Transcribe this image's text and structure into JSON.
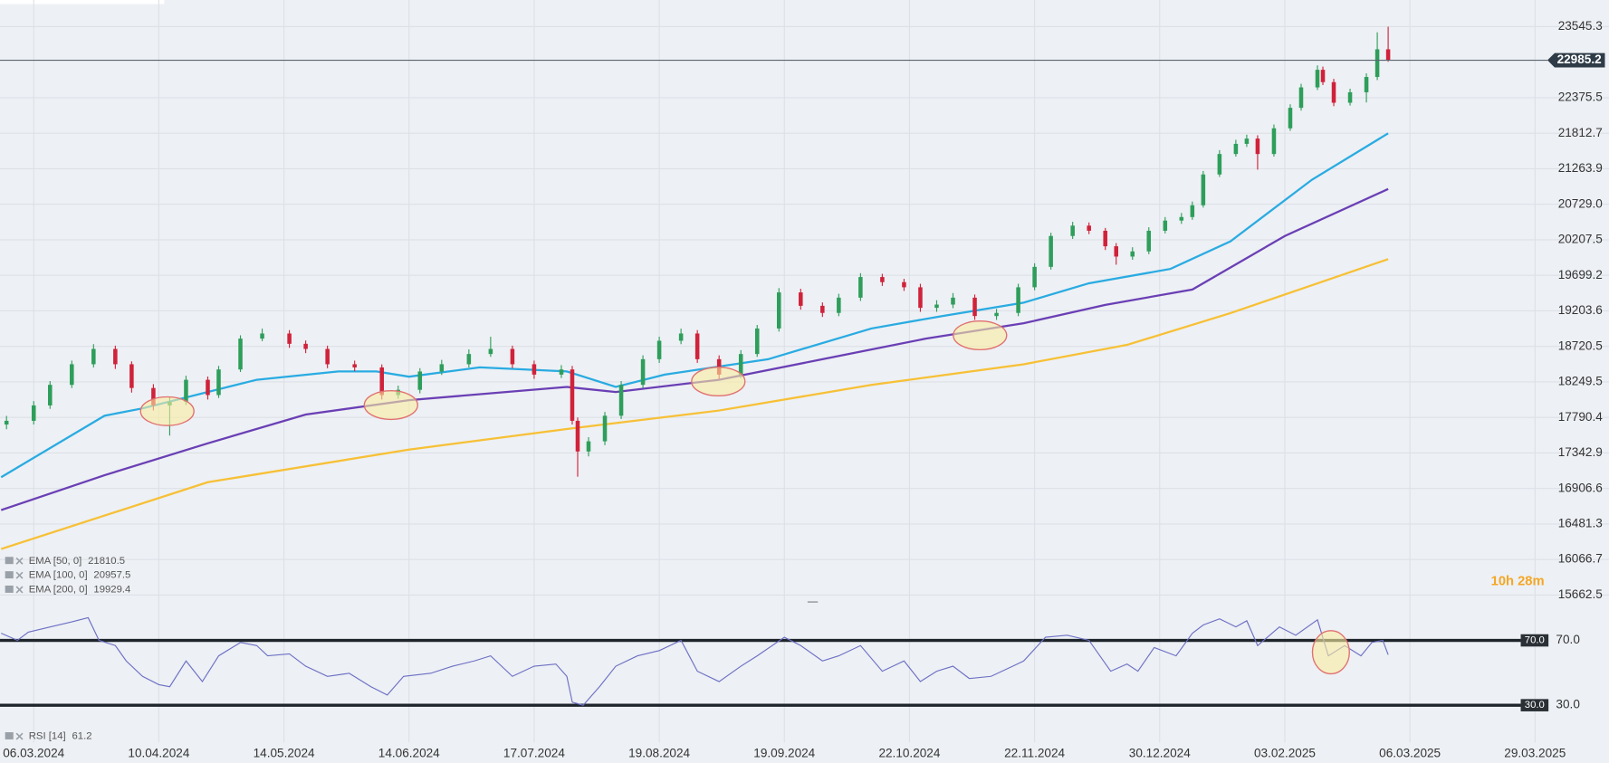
{
  "chart_data": [
    {
      "type": "candlestick",
      "x": [
        -5,
        0,
        3,
        7,
        11,
        15,
        18,
        22,
        25,
        28,
        32,
        34,
        38,
        42,
        47,
        50,
        54,
        59,
        64,
        67,
        71,
        75,
        80,
        84,
        88,
        92,
        97,
        99,
        100,
        102,
        105,
        108,
        112,
        115,
        119,
        122,
        126,
        130,
        133,
        137,
        141,
        145,
        148,
        152,
        156,
        160,
        163,
        166,
        169,
        173,
        177,
        181,
        184,
        187,
        191,
        194,
        197,
        199,
        202,
        205,
        208,
        211,
        213,
        215,
        218,
        221,
        223,
        225,
        228,
        231,
        233,
        236,
        237,
        239,
        242,
        245,
        247,
        249
      ],
      "open": [
        17700,
        17747,
        17944,
        18211,
        18482,
        18686,
        18482,
        18170,
        17944,
        17990,
        18277,
        18078,
        18413,
        18825,
        18894,
        18755,
        18686,
        18482,
        18440,
        18078,
        18146,
        18386,
        18482,
        18618,
        18686,
        18482,
        18345,
        18413,
        17747,
        17361,
        17488,
        17812,
        18211,
        18549,
        18796,
        18894,
        18549,
        18345,
        18618,
        18962,
        19459,
        19273,
        19175,
        19386,
        19675,
        19603,
        19531,
        19245,
        19290,
        19386,
        19132,
        19175,
        19531,
        19819,
        20263,
        20414,
        20339,
        20114,
        19966,
        20040,
        20339,
        20488,
        20540,
        20714,
        21177,
        21490,
        21647,
        21729,
        21490,
        21890,
        22214,
        22542,
        22828,
        22627,
        22295,
        22463,
        22711,
        23166
      ],
      "high": [
        17810,
        18000,
        18260,
        18530,
        18750,
        18730,
        18520,
        18220,
        18050,
        18330,
        18320,
        18460,
        18870,
        18960,
        18940,
        18800,
        18730,
        18530,
        18480,
        18200,
        18430,
        18540,
        18680,
        18850,
        18730,
        18530,
        18470,
        18460,
        17790,
        17540,
        17860,
        18260,
        18600,
        18850,
        18960,
        18940,
        18600,
        18670,
        19010,
        19520,
        19510,
        19320,
        19440,
        19730,
        19720,
        19650,
        19580,
        19350,
        19450,
        19430,
        19230,
        19580,
        19870,
        20310,
        20470,
        20460,
        20380,
        20160,
        20100,
        20390,
        20540,
        20600,
        20770,
        21230,
        21550,
        21710,
        21790,
        21780,
        21950,
        22270,
        22600,
        22900,
        22880,
        22680,
        22520,
        22770,
        23450,
        23545
      ],
      "low": [
        17640,
        17700,
        17900,
        18170,
        18440,
        18420,
        18110,
        17880,
        17560,
        17950,
        18020,
        18040,
        18380,
        18790,
        18700,
        18630,
        18430,
        18390,
        18020,
        18030,
        18100,
        18340,
        18440,
        18580,
        18430,
        18290,
        18300,
        17700,
        17050,
        17300,
        17440,
        17770,
        18170,
        18500,
        18750,
        18500,
        18290,
        18300,
        18580,
        18920,
        19220,
        19120,
        19130,
        19340,
        19550,
        19480,
        19190,
        19190,
        19240,
        19080,
        19080,
        19130,
        19490,
        19780,
        20220,
        20290,
        20060,
        19850,
        19920,
        20000,
        20300,
        20440,
        20500,
        20680,
        21140,
        21450,
        21600,
        21250,
        21450,
        21850,
        22170,
        22500,
        22580,
        22240,
        22250,
        22300,
        22660,
        22960
      ],
      "close": [
        17747,
        17944,
        18211,
        18482,
        18686,
        18482,
        18170,
        17944,
        17990,
        18277,
        18078,
        18413,
        18825,
        18894,
        18755,
        18686,
        18482,
        18440,
        18078,
        18146,
        18386,
        18482,
        18618,
        18686,
        18482,
        18345,
        18413,
        17747,
        17361,
        17488,
        17812,
        18211,
        18549,
        18796,
        18894,
        18549,
        18345,
        18618,
        18962,
        19459,
        19273,
        19175,
        19386,
        19675,
        19603,
        19531,
        19245,
        19290,
        19386,
        19132,
        19175,
        19531,
        19819,
        20263,
        20414,
        20339,
        20114,
        19966,
        20040,
        20339,
        20488,
        20540,
        20714,
        21177,
        21490,
        21647,
        21729,
        21490,
        21890,
        22214,
        22542,
        22828,
        22627,
        22295,
        22463,
        22711,
        23166,
        22985.2
      ],
      "up_color": "#2e9e5b",
      "down_color": "#d0223a",
      "series": [
        {
          "name": "EMA [50, 0]",
          "color": "#29abe2",
          "x": [
            -6,
            13,
            20,
            41,
            56,
            63,
            69,
            82,
            98,
            107,
            116,
            135,
            154,
            167,
            182,
            194,
            209,
            220,
            235,
            249
          ],
          "values": [
            17044,
            17812,
            17906,
            18278,
            18386,
            18386,
            18318,
            18441,
            18386,
            18184,
            18345,
            18549,
            18962,
            19132,
            19317,
            19588,
            19790,
            20186,
            21098,
            21810.5
          ]
        },
        {
          "name": "EMA [100, 0]",
          "color": "#6a3fb5",
          "x": [
            -6,
            13,
            32,
            50,
            69,
            98,
            107,
            126,
            145,
            164,
            182,
            197,
            213,
            230,
            249
          ],
          "values": [
            16646,
            17068,
            17462,
            17827,
            18012,
            18184,
            18117,
            18278,
            18549,
            18825,
            19034,
            19286,
            19499,
            20263,
            20957.5
          ]
        },
        {
          "name": "EMA [200, 0]",
          "color": "#f7c035",
          "x": [
            -6,
            32,
            69,
            98,
            126,
            154,
            182,
            201,
            220,
            249
          ],
          "values": [
            16188,
            16982,
            17385,
            17644,
            17879,
            18211,
            18482,
            18741,
            19173,
            19929.4
          ]
        }
      ],
      "xlim": [
        -6.2,
        289.6
      ],
      "xticks": [
        {
          "value": 0,
          "label": "06.03.2024"
        },
        {
          "value": 23,
          "label": "10.04.2024"
        },
        {
          "value": 46,
          "label": "14.05.2024"
        },
        {
          "value": 69,
          "label": "14.06.2024"
        },
        {
          "value": 92,
          "label": "17.07.2024"
        },
        {
          "value": 115,
          "label": "19.08.2024"
        },
        {
          "value": 138,
          "label": "19.09.2024"
        },
        {
          "value": 161,
          "label": "22.10.2024"
        },
        {
          "value": 184,
          "label": "22.11.2024"
        },
        {
          "value": 207,
          "label": "30.12.2024"
        },
        {
          "value": 230,
          "label": "03.02.2025"
        },
        {
          "value": 253,
          "label": "06.03.2025"
        },
        {
          "value": 276,
          "label": "29.03.2025"
        }
      ],
      "ylim": [
        15550,
        24000
      ],
      "log": true,
      "yticks": [
        23545.3,
        22375.5,
        21812.7,
        21263.9,
        {
          "value": 20729,
          "label": "20729.0"
        },
        20207.5,
        19699.2,
        19203.6,
        18720.5,
        18249.5,
        17790.4,
        17342.9,
        16906.6,
        16481.3,
        16066.7,
        15662.5
      ],
      "grid": true,
      "countdown": "10h 28m"
    },
    {
      "type": "line",
      "series": [
        {
          "name": "RSI [14]",
          "color": "#6c6fc4",
          "x": [
            -6,
            -3,
            -1,
            3,
            7,
            10,
            12,
            15,
            17,
            20,
            23,
            25,
            28,
            31,
            34,
            38,
            41,
            43,
            47,
            50,
            54,
            58,
            62,
            65,
            68,
            73,
            77,
            81,
            84,
            88,
            92,
            96,
            98,
            99,
            101,
            104,
            107,
            111,
            115,
            119,
            122,
            126,
            130,
            133,
            138,
            141,
            145,
            148,
            152,
            156,
            160,
            163,
            166,
            169,
            172,
            176,
            180,
            182,
            186,
            190,
            194,
            198,
            201,
            203,
            206,
            210,
            213,
            215,
            218,
            221,
            223,
            225,
            229,
            232,
            236,
            238,
            241,
            244,
            246,
            248,
            249
          ],
          "values": [
            74.4,
            70,
            75.1,
            78.3,
            81.4,
            84.0,
            70,
            66.8,
            57.3,
            47.8,
            42.7,
            41.4,
            57.3,
            44.6,
            60.5,
            68.7,
            66.8,
            60.5,
            61.7,
            54.1,
            47.8,
            49.7,
            41.4,
            36.3,
            47.8,
            49.7,
            54.1,
            57.3,
            60.5,
            47.8,
            54.1,
            55.4,
            47.8,
            31.9,
            30.0,
            41.4,
            54.1,
            60.5,
            63.7,
            70,
            51.0,
            44.6,
            54.1,
            60.5,
            71.9,
            66.8,
            57.3,
            60.5,
            66.8,
            51.0,
            57.3,
            44.6,
            51.0,
            54.1,
            46.5,
            47.8,
            54.1,
            57.3,
            71.9,
            73.2,
            70,
            51.0,
            55.4,
            51.0,
            65.6,
            60.5,
            74.4,
            79.5,
            83.3,
            78.3,
            82.1,
            66.8,
            78.3,
            73.2,
            82.7,
            60.5,
            66.8,
            60.5,
            68.7,
            70,
            61.2
          ]
        }
      ],
      "ylim": [
        7,
        88
      ],
      "yticks": [
        {
          "value": 70,
          "label": "70.0"
        },
        {
          "value": 30,
          "label": "30.0"
        }
      ]
    }
  ]
}
